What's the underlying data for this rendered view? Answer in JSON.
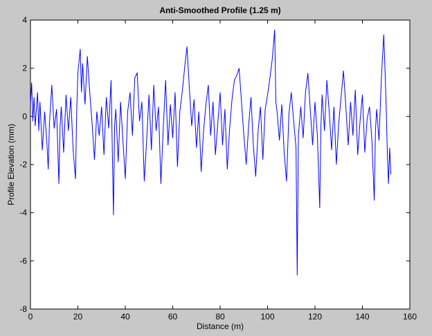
{
  "chart_data": {
    "type": "line",
    "title": "Anti-Smoothed Profile (1.25 m)",
    "x_label": "Distance (m)",
    "y_label": "Profile Elevation (mm)",
    "color": "#0000ff",
    "x": [
      0,
      0.5,
      1,
      1.5,
      2,
      3,
      3.5,
      4,
      5,
      6,
      7,
      7.5,
      8,
      9,
      10,
      11,
      12,
      12.5,
      13,
      14,
      15,
      16,
      17,
      18,
      19,
      19.5,
      20,
      21,
      21.5,
      22,
      23,
      24,
      25,
      26,
      27,
      28,
      29,
      30,
      31,
      32,
      33,
      34,
      35,
      35.5,
      36,
      37,
      38,
      39,
      40,
      41,
      42,
      43,
      44,
      45,
      46,
      47,
      48,
      49,
      50,
      51,
      52,
      53,
      54,
      55,
      56,
      57,
      58,
      59,
      60,
      61,
      62,
      63,
      64,
      65,
      66,
      67,
      68,
      69,
      70,
      71,
      72,
      73,
      74,
      75,
      76,
      77,
      78,
      79,
      80,
      81,
      82,
      83,
      84,
      85,
      86,
      87,
      88,
      89,
      90,
      91,
      92,
      93,
      94,
      95,
      96,
      97,
      98,
      99,
      100,
      101,
      102,
      103,
      103.5,
      104,
      105,
      106,
      107,
      108,
      109,
      110,
      111,
      112,
      112.5,
      113,
      114,
      115,
      116,
      117,
      118,
      119,
      120,
      121,
      122,
      122.5,
      123,
      124,
      125,
      126,
      127,
      128,
      129,
      130,
      131,
      132,
      133,
      134,
      135,
      136,
      137,
      138,
      139,
      140,
      141,
      142,
      143,
      144,
      145,
      145.5,
      146,
      147,
      148,
      149,
      149.5,
      150,
      150.5,
      151,
      151.5,
      152
    ],
    "values": [
      0.5,
      1.4,
      -0.2,
      0.8,
      -0.4,
      1.0,
      -0.6,
      0.6,
      -1.4,
      0.2,
      -1.2,
      -2.2,
      -0.3,
      1.3,
      -0.5,
      0.3,
      -2.8,
      -0.4,
      0.4,
      -1.5,
      0.9,
      -0.6,
      0.8,
      -1.4,
      -2.6,
      0.2,
      1.8,
      2.8,
      1.0,
      2.2,
      0.5,
      2.5,
      1.0,
      -0.3,
      -1.8,
      0.2,
      -0.8,
      0.4,
      -1.6,
      0.8,
      -0.5,
      1.5,
      -4.1,
      -0.4,
      0.3,
      -1.9,
      0.6,
      -1.0,
      -2.6,
      0.2,
      1.0,
      -0.8,
      1.6,
      1.8,
      -0.2,
      0.6,
      -2.7,
      -1.0,
      0.9,
      -1.4,
      1.3,
      -0.6,
      0.4,
      -2.8,
      -0.5,
      1.5,
      -1.2,
      0.5,
      -0.9,
      1.0,
      -2.1,
      0.2,
      1.0,
      2.0,
      2.9,
      1.2,
      -0.4,
      0.7,
      -1.3,
      0.2,
      -2.3,
      -0.6,
      0.5,
      1.3,
      -0.8,
      0.6,
      -1.6,
      -0.3,
      1.0,
      -1.2,
      0.3,
      -2.2,
      -0.5,
      0.7,
      1.5,
      1.7,
      2.0,
      0.6,
      -0.8,
      -2.0,
      -0.4,
      0.8,
      -1.2,
      -2.5,
      -0.6,
      0.4,
      -1.8,
      0.3,
      0.9,
      1.6,
      2.4,
      3.6,
      0.6,
      0.2,
      -1.0,
      0.5,
      -1.5,
      -2.7,
      0.1,
      1.0,
      -0.2,
      -1.3,
      -6.6,
      -0.8,
      0.4,
      -0.9,
      1.0,
      1.8,
      0.3,
      -1.2,
      0.6,
      -0.8,
      -3.8,
      -0.4,
      0.9,
      -0.6,
      1.5,
      0.2,
      -1.4,
      0.4,
      -2.0,
      -0.3,
      0.8,
      1.9,
      0.4,
      -1.2,
      0.6,
      -0.8,
      1.1,
      -1.6,
      -0.2,
      0.9,
      -1.5,
      -0.1,
      0.4,
      -1.0,
      -3.5,
      -0.6,
      0.3,
      -1.0,
      1.6,
      3.4,
      2.0,
      0.5,
      -1.5,
      -2.8,
      -1.3,
      -2.4
    ],
    "xlim": [
      0,
      160
    ],
    "xticks": [
      0,
      20,
      40,
      60,
      80,
      100,
      120,
      140,
      160
    ],
    "ylim": [
      -8,
      4
    ],
    "yticks": [
      -8,
      -6,
      -4,
      -2,
      0,
      2,
      4
    ]
  }
}
